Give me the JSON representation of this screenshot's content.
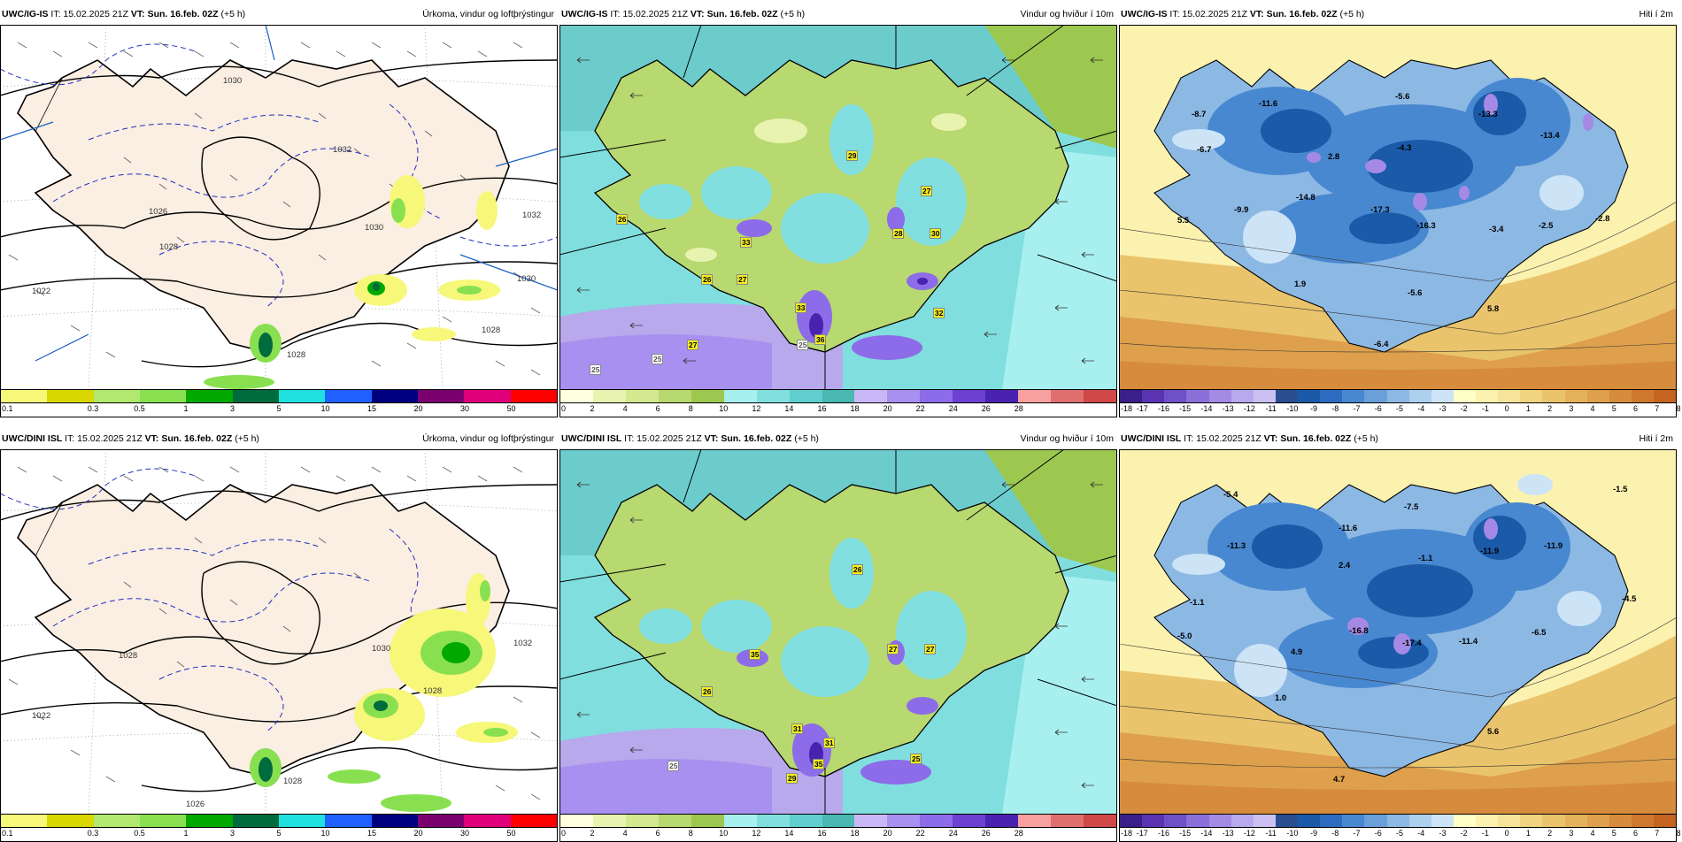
{
  "header": {
    "it_prefix": "IT: 15.02.2025 21Z",
    "vt_label": "VT: Sun. 16.feb. 02Z",
    "vt_suffix": "(+5 h)"
  },
  "rows": [
    {
      "model": "UWC/IG-IS"
    },
    {
      "model": "UWC/DINI ISL"
    }
  ],
  "products": [
    {
      "title": "Úrkoma, vindur og loftþrýstingur",
      "colors": [
        "#f7f77a",
        "#d8d800",
        "#b0e870",
        "#88e050",
        "#00a800",
        "#006b3c",
        "#20e0e0",
        "#2060ff",
        "#000080",
        "#7a0070",
        "#e0007a",
        "#ff0000"
      ],
      "ticks": [
        "0.1",
        "0.3",
        "0.5",
        "1",
        "3",
        "5",
        "10",
        "15",
        "20",
        "30",
        "50"
      ]
    },
    {
      "title": "Vindur og hviður í 10m",
      "colors": [
        "#ffffe0",
        "#e8f3b0",
        "#d4e890",
        "#b8d870",
        "#9cc850",
        "#a8f0f0",
        "#80e0e0",
        "#60cece",
        "#48b8b0",
        "#c8b8f8",
        "#a890f0",
        "#8c6ce8",
        "#6c40d0",
        "#4a22b0",
        "#f8a0a0",
        "#e07070",
        "#d04848"
      ],
      "ticks": [
        "0",
        "2",
        "4",
        "6",
        "8",
        "10",
        "12",
        "14",
        "16",
        "18",
        "20",
        "22",
        "24",
        "26",
        "28"
      ]
    },
    {
      "title": "Hiti í 2m",
      "colors": [
        "#3a1e8a",
        "#5a34b0",
        "#7050c8",
        "#8a70d8",
        "#a48ae4",
        "#b8a8ec",
        "#ccc0f2",
        "#2a4e90",
        "#1a5aa8",
        "#2c6cc0",
        "#4888d0",
        "#6aa0da",
        "#8cb8e4",
        "#acd0ee",
        "#cce4f6",
        "#ffffc8",
        "#fbf2b0",
        "#f6e498",
        "#f0d480",
        "#eac46c",
        "#e4b25a",
        "#dea04c",
        "#d68c3c",
        "#ce782e",
        "#c46420"
      ],
      "ticks": [
        "-18",
        "-17",
        "-16",
        "-15",
        "-14",
        "-13",
        "-12",
        "-11",
        "-10",
        "-9",
        "-8",
        "-7",
        "-6",
        "-5",
        "-4",
        "-3",
        "-2",
        "-1",
        "0",
        "1",
        "2",
        "3",
        "4",
        "5",
        "6",
        "7",
        "8"
      ]
    }
  ],
  "pressure_labels": {
    "top": [
      "1030",
      "1032",
      "1026",
      "1028",
      "1030",
      "1032",
      "1022",
      "1028",
      "1028",
      "1030"
    ],
    "bottom": [
      "1028",
      "1030",
      "1032",
      "1022",
      "1028",
      "1028",
      "1026"
    ]
  },
  "wind_labels": {
    "top": [
      "26",
      "33",
      "29",
      "27",
      "28",
      "30",
      "26",
      "27",
      "27",
      "33",
      "36",
      "32",
      "25",
      "25",
      "25"
    ],
    "bottom": [
      "35",
      "26",
      "26",
      "27",
      "27",
      "31",
      "31",
      "35",
      "29",
      "25",
      "25"
    ]
  },
  "temp_labels": {
    "top": [
      "-8.7",
      "-11.6",
      "-5.6",
      "-13.3",
      "-13.4",
      "-6.7",
      "-4.3",
      "2.8",
      "-14.8",
      "-17.3",
      "-16.3",
      "-3.4",
      "-2.5",
      "-2.8",
      "5.5",
      "-9.9",
      "1.9",
      "-5.6",
      "5.8",
      "-6.4"
    ],
    "bottom": [
      "-5.4",
      "-7.5",
      "-1.5",
      "-11.3",
      "-11.6",
      "-1.1",
      "-11.9",
      "-11.9",
      "2.4",
      "-4.5",
      "-1.1",
      "-16.8",
      "-17.4",
      "-11.4",
      "-6.5",
      "-5.0",
      "4.9",
      "1.0",
      "5.6",
      "4.7"
    ]
  },
  "colors": {
    "land_precip": "#fbeee2",
    "sea_precip": "#ffffff",
    "isobar": "#000000",
    "isotherm": "#2030c0"
  }
}
